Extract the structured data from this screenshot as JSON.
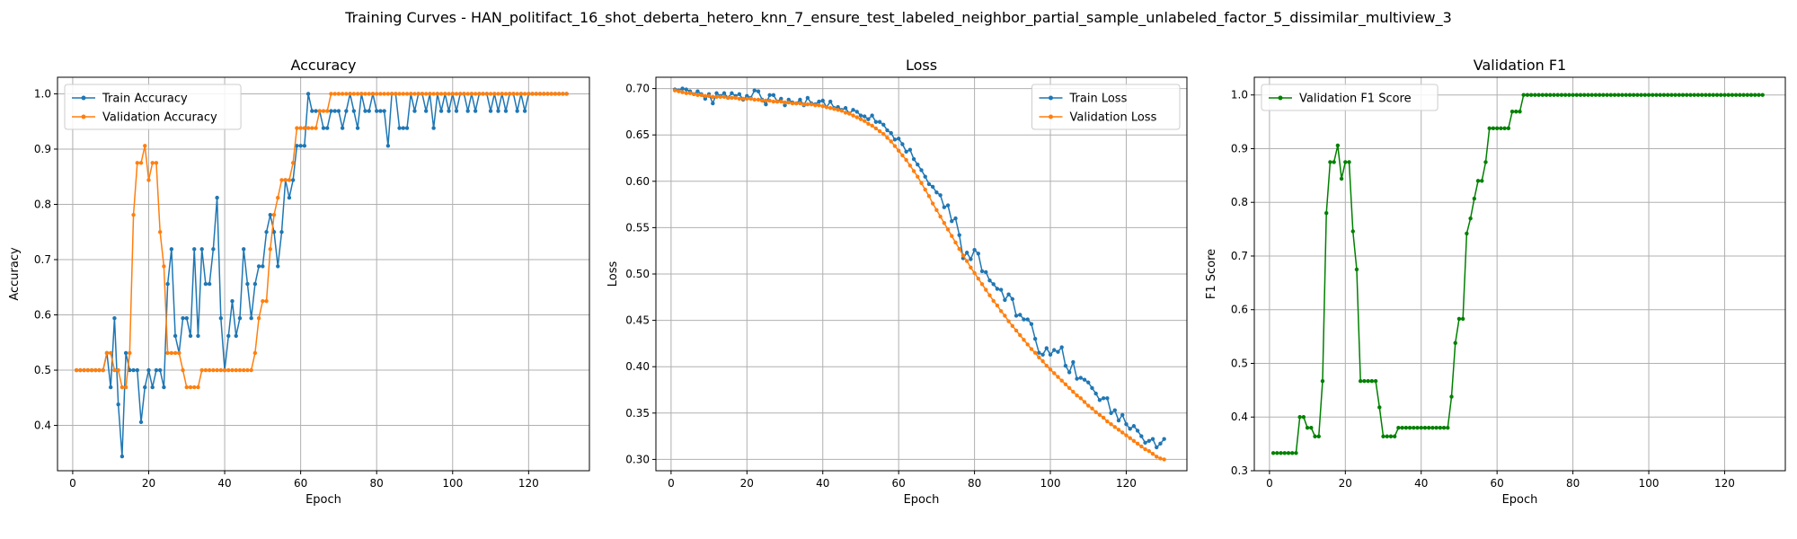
{
  "figure_title": "Training Curves - HAN_politifact_16_shot_deberta_hetero_knn_7_ensure_test_labeled_neighbor_partial_sample_unlabeled_factor_5_dissimilar_multiview_3",
  "colors": {
    "train": "#1f77b4",
    "validation": "#ff7f0e",
    "f1": "#008000"
  },
  "chart_data": [
    {
      "type": "line",
      "title": "Accuracy",
      "xlabel": "Epoch",
      "ylabel": "Accuracy",
      "xlim": [
        -4,
        136
      ],
      "ylim": [
        0.318,
        1.03
      ],
      "xticks": [
        0,
        20,
        40,
        60,
        80,
        100,
        120
      ],
      "yticks": [
        0.4,
        0.5,
        0.6,
        0.7,
        0.8,
        0.9,
        1.0
      ],
      "ytick_labels": [
        "0.4",
        "0.5",
        "0.6",
        "0.7",
        "0.8",
        "0.9",
        "1.0"
      ],
      "legend_position": "upper-left",
      "x_start": 1,
      "series": [
        {
          "name": "Train Accuracy",
          "color": "#1f77b4",
          "values": [
            0.5,
            0.5,
            0.5,
            0.5,
            0.5,
            0.5,
            0.5,
            0.5,
            0.531,
            0.469,
            0.594,
            0.438,
            0.344,
            0.531,
            0.5,
            0.5,
            0.5,
            0.406,
            0.469,
            0.5,
            0.469,
            0.5,
            0.5,
            0.469,
            0.656,
            0.719,
            0.562,
            0.531,
            0.594,
            0.594,
            0.562,
            0.719,
            0.562,
            0.719,
            0.656,
            0.656,
            0.719,
            0.812,
            0.594,
            0.5,
            0.562,
            0.625,
            0.562,
            0.594,
            0.719,
            0.656,
            0.594,
            0.656,
            0.688,
            0.688,
            0.75,
            0.781,
            0.75,
            0.688,
            0.75,
            0.844,
            0.812,
            0.844,
            0.906,
            0.906,
            0.906,
            1.0,
            0.969,
            0.969,
            0.969,
            0.938,
            0.938,
            0.969,
            0.969,
            0.969,
            0.938,
            0.969,
            1.0,
            0.969,
            0.938,
            1.0,
            0.969,
            0.969,
            1.0,
            0.969,
            0.969,
            0.969,
            0.906,
            1.0,
            1.0,
            0.938,
            0.938,
            0.938,
            1.0,
            0.969,
            1.0,
            1.0,
            0.969,
            1.0,
            0.938,
            1.0,
            0.969,
            1.0,
            0.969,
            1.0,
            0.969,
            1.0,
            1.0,
            0.969,
            1.0,
            0.969,
            1.0,
            1.0,
            1.0,
            0.969,
            1.0,
            0.969,
            1.0,
            0.969,
            1.0,
            1.0,
            0.969,
            1.0,
            0.969,
            1.0,
            1.0,
            1.0,
            1.0,
            1.0,
            1.0,
            1.0,
            1.0,
            1.0,
            1.0,
            1.0
          ]
        },
        {
          "name": "Validation Accuracy",
          "color": "#ff7f0e",
          "values": [
            0.5,
            0.5,
            0.5,
            0.5,
            0.5,
            0.5,
            0.5,
            0.5,
            0.531,
            0.531,
            0.5,
            0.5,
            0.469,
            0.469,
            0.531,
            0.781,
            0.875,
            0.875,
            0.906,
            0.844,
            0.875,
            0.875,
            0.75,
            0.688,
            0.531,
            0.531,
            0.531,
            0.531,
            0.5,
            0.469,
            0.469,
            0.469,
            0.469,
            0.5,
            0.5,
            0.5,
            0.5,
            0.5,
            0.5,
            0.5,
            0.5,
            0.5,
            0.5,
            0.5,
            0.5,
            0.5,
            0.5,
            0.531,
            0.594,
            0.625,
            0.625,
            0.719,
            0.781,
            0.812,
            0.844,
            0.844,
            0.844,
            0.875,
            0.938,
            0.938,
            0.938,
            0.938,
            0.938,
            0.938,
            0.969,
            0.969,
            0.969,
            1.0,
            1.0,
            1.0,
            1.0,
            1.0,
            1.0,
            1.0,
            1.0,
            1.0,
            1.0,
            1.0,
            1.0,
            1.0,
            1.0,
            1.0,
            1.0,
            1.0,
            1.0,
            1.0,
            1.0,
            1.0,
            1.0,
            1.0,
            1.0,
            1.0,
            1.0,
            1.0,
            1.0,
            1.0,
            1.0,
            1.0,
            1.0,
            1.0,
            1.0,
            1.0,
            1.0,
            1.0,
            1.0,
            1.0,
            1.0,
            1.0,
            1.0,
            1.0,
            1.0,
            1.0,
            1.0,
            1.0,
            1.0,
            1.0,
            1.0,
            1.0,
            1.0,
            1.0,
            1.0,
            1.0,
            1.0,
            1.0,
            1.0,
            1.0,
            1.0,
            1.0,
            1.0,
            1.0
          ]
        }
      ]
    },
    {
      "type": "line",
      "title": "Loss",
      "xlabel": "Epoch",
      "ylabel": "Loss",
      "xlim": [
        -4,
        136
      ],
      "ylim": [
        0.2878,
        0.7122
      ],
      "xticks": [
        0,
        20,
        40,
        60,
        80,
        100,
        120
      ],
      "yticks": [
        0.3,
        0.35,
        0.4,
        0.45,
        0.5,
        0.55,
        0.6,
        0.65,
        0.7
      ],
      "ytick_labels": [
        "0.30",
        "0.35",
        "0.40",
        "0.45",
        "0.50",
        "0.55",
        "0.60",
        "0.65",
        "0.70"
      ],
      "legend_position": "upper-right",
      "x_start": 1,
      "series": [
        {
          "name": "Train Loss",
          "color": "#1f77b4",
          "values": [
            0.699,
            0.698,
            0.7,
            0.699,
            0.697,
            0.694,
            0.697,
            0.694,
            0.689,
            0.694,
            0.684,
            0.695,
            0.692,
            0.695,
            0.69,
            0.695,
            0.692,
            0.694,
            0.688,
            0.692,
            0.69,
            0.698,
            0.697,
            0.688,
            0.683,
            0.693,
            0.693,
            0.686,
            0.689,
            0.682,
            0.688,
            0.685,
            0.684,
            0.688,
            0.682,
            0.69,
            0.684,
            0.683,
            0.686,
            0.687,
            0.68,
            0.686,
            0.679,
            0.68,
            0.677,
            0.679,
            0.673,
            0.677,
            0.675,
            0.671,
            0.67,
            0.667,
            0.671,
            0.664,
            0.664,
            0.661,
            0.655,
            0.652,
            0.645,
            0.646,
            0.64,
            0.632,
            0.634,
            0.624,
            0.618,
            0.612,
            0.605,
            0.597,
            0.594,
            0.588,
            0.585,
            0.572,
            0.574,
            0.557,
            0.56,
            0.542,
            0.517,
            0.523,
            0.516,
            0.526,
            0.522,
            0.503,
            0.502,
            0.493,
            0.489,
            0.484,
            0.483,
            0.472,
            0.478,
            0.473,
            0.455,
            0.456,
            0.451,
            0.451,
            0.446,
            0.43,
            0.415,
            0.413,
            0.42,
            0.413,
            0.418,
            0.416,
            0.421,
            0.401,
            0.394,
            0.405,
            0.387,
            0.388,
            0.386,
            0.383,
            0.377,
            0.371,
            0.364,
            0.366,
            0.366,
            0.35,
            0.353,
            0.342,
            0.348,
            0.338,
            0.333,
            0.336,
            0.331,
            0.325,
            0.318,
            0.32,
            0.322,
            0.313,
            0.317,
            0.322
          ]
        },
        {
          "name": "Validation Loss",
          "color": "#ff7f0e",
          "values": [
            0.698,
            0.697,
            0.696,
            0.695,
            0.695,
            0.694,
            0.693,
            0.693,
            0.692,
            0.692,
            0.691,
            0.691,
            0.691,
            0.691,
            0.69,
            0.69,
            0.69,
            0.689,
            0.689,
            0.689,
            0.689,
            0.688,
            0.688,
            0.687,
            0.687,
            0.687,
            0.686,
            0.686,
            0.686,
            0.685,
            0.685,
            0.684,
            0.684,
            0.684,
            0.683,
            0.683,
            0.683,
            0.682,
            0.682,
            0.681,
            0.68,
            0.679,
            0.678,
            0.677,
            0.676,
            0.674,
            0.673,
            0.671,
            0.669,
            0.667,
            0.665,
            0.662,
            0.66,
            0.657,
            0.654,
            0.651,
            0.647,
            0.643,
            0.638,
            0.633,
            0.628,
            0.623,
            0.617,
            0.611,
            0.605,
            0.598,
            0.591,
            0.584,
            0.576,
            0.569,
            0.562,
            0.555,
            0.548,
            0.541,
            0.534,
            0.527,
            0.52,
            0.514,
            0.507,
            0.501,
            0.495,
            0.489,
            0.483,
            0.477,
            0.471,
            0.466,
            0.46,
            0.455,
            0.449,
            0.444,
            0.439,
            0.434,
            0.429,
            0.424,
            0.419,
            0.415,
            0.41,
            0.406,
            0.401,
            0.397,
            0.393,
            0.389,
            0.385,
            0.381,
            0.377,
            0.373,
            0.369,
            0.366,
            0.362,
            0.358,
            0.355,
            0.351,
            0.348,
            0.345,
            0.341,
            0.338,
            0.335,
            0.332,
            0.329,
            0.326,
            0.323,
            0.32,
            0.317,
            0.314,
            0.311,
            0.309,
            0.306,
            0.303,
            0.301,
            0.3
          ]
        }
      ]
    },
    {
      "type": "line",
      "title": "Validation F1",
      "xlabel": "Epoch",
      "ylabel": "F1 Score",
      "xlim": [
        -4,
        136
      ],
      "ylim": [
        0.3,
        1.033
      ],
      "xticks": [
        0,
        20,
        40,
        60,
        80,
        100,
        120
      ],
      "yticks": [
        0.3,
        0.4,
        0.5,
        0.6,
        0.7,
        0.8,
        0.9,
        1.0
      ],
      "ytick_labels": [
        "0.3",
        "0.4",
        "0.5",
        "0.6",
        "0.7",
        "0.8",
        "0.9",
        "1.0"
      ],
      "legend_position": "upper-left",
      "x_start": 1,
      "series": [
        {
          "name": "Validation F1 Score",
          "color": "#008000",
          "values": [
            0.333,
            0.333,
            0.333,
            0.333,
            0.333,
            0.333,
            0.333,
            0.4,
            0.4,
            0.38,
            0.38,
            0.364,
            0.364,
            0.467,
            0.78,
            0.875,
            0.875,
            0.906,
            0.844,
            0.875,
            0.875,
            0.746,
            0.675,
            0.467,
            0.467,
            0.467,
            0.467,
            0.467,
            0.418,
            0.364,
            0.364,
            0.364,
            0.364,
            0.38,
            0.38,
            0.38,
            0.38,
            0.38,
            0.38,
            0.38,
            0.38,
            0.38,
            0.38,
            0.38,
            0.38,
            0.38,
            0.38,
            0.438,
            0.538,
            0.583,
            0.583,
            0.742,
            0.77,
            0.807,
            0.84,
            0.84,
            0.875,
            0.938,
            0.938,
            0.938,
            0.938,
            0.938,
            0.938,
            0.969,
            0.969,
            0.969,
            1.0,
            1.0,
            1.0,
            1.0,
            1.0,
            1.0,
            1.0,
            1.0,
            1.0,
            1.0,
            1.0,
            1.0,
            1.0,
            1.0,
            1.0,
            1.0,
            1.0,
            1.0,
            1.0,
            1.0,
            1.0,
            1.0,
            1.0,
            1.0,
            1.0,
            1.0,
            1.0,
            1.0,
            1.0,
            1.0,
            1.0,
            1.0,
            1.0,
            1.0,
            1.0,
            1.0,
            1.0,
            1.0,
            1.0,
            1.0,
            1.0,
            1.0,
            1.0,
            1.0,
            1.0,
            1.0,
            1.0,
            1.0,
            1.0,
            1.0,
            1.0,
            1.0,
            1.0,
            1.0,
            1.0,
            1.0,
            1.0,
            1.0,
            1.0,
            1.0,
            1.0,
            1.0,
            1.0,
            1.0
          ]
        }
      ]
    }
  ]
}
